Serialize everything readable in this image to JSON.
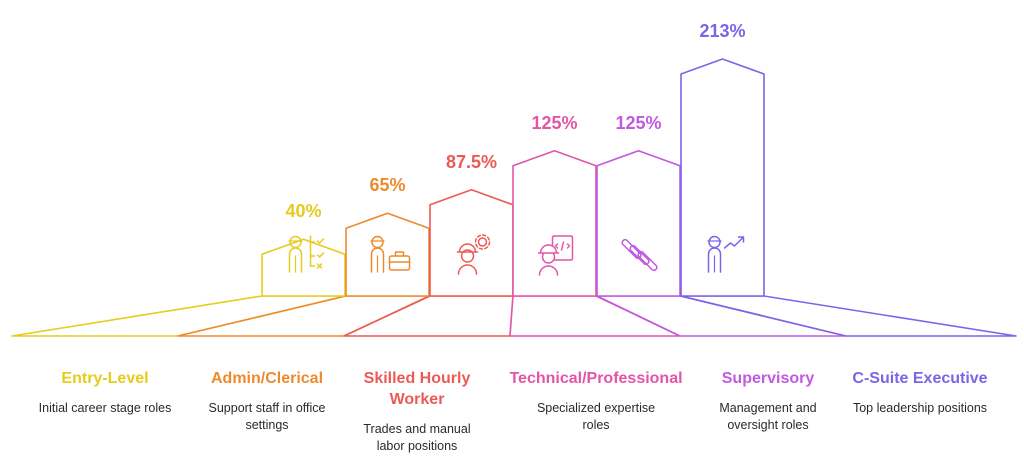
{
  "chart_data": {
    "type": "bar",
    "title": "",
    "ylabel": "",
    "ylim": [
      0,
      213
    ],
    "categories": [
      "Entry-Level",
      "Admin/Clerical",
      "Skilled Hourly Worker",
      "Technical/Professional",
      "Supervisory",
      "C-Suite Executive"
    ],
    "values": [
      40,
      65,
      87.5,
      125,
      125,
      213
    ],
    "value_labels": [
      "40%",
      "65%",
      "87.5%",
      "125%",
      "125%",
      "213%"
    ],
    "descriptions": [
      "Initial career stage roles",
      "Support staff in office settings",
      "Trades and manual labor positions",
      "Specialized expertise roles",
      "Management and oversight roles",
      "Top leadership positions"
    ],
    "icons": [
      "worker-checklist-icon",
      "worker-briefcase-icon",
      "worker-gear-icon",
      "worker-code-icon",
      "diagonal-stripes-icon",
      "executive-growth-icon"
    ],
    "colors": [
      "#e6cc1f",
      "#ee8a2e",
      "#ec5a55",
      "#e255a8",
      "#c05ae0",
      "#7b64e8"
    ]
  }
}
